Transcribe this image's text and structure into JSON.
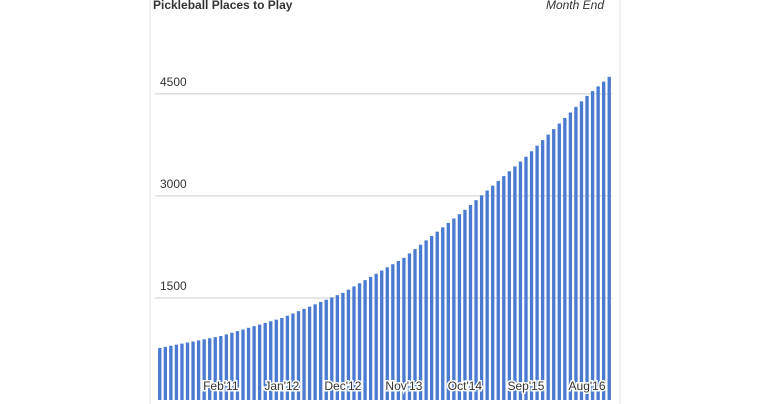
{
  "chart_data": {
    "type": "bar",
    "title": "Pickleball Places to Play",
    "subtitle": "Month End",
    "categories": [
      null,
      null,
      null,
      null,
      null,
      null,
      null,
      null,
      null,
      null,
      null,
      "Feb'11",
      null,
      null,
      null,
      null,
      null,
      null,
      null,
      null,
      null,
      null,
      "Jan'12",
      null,
      null,
      null,
      null,
      null,
      null,
      null,
      null,
      null,
      null,
      "Dec'12",
      null,
      null,
      null,
      null,
      null,
      null,
      null,
      null,
      null,
      null,
      "Nov'13",
      null,
      null,
      null,
      null,
      null,
      null,
      null,
      null,
      null,
      null,
      "Oct'14",
      null,
      null,
      null,
      null,
      null,
      null,
      null,
      null,
      null,
      null,
      "Sep'15",
      null,
      null,
      null,
      null,
      null,
      null,
      null,
      null,
      null,
      null,
      "Aug'16",
      null,
      null,
      null,
      null
    ],
    "values": [
      765,
      781,
      797,
      813,
      829,
      845,
      860,
      876,
      892,
      908,
      924,
      940,
      964,
      988,
      1012,
      1036,
      1061,
      1085,
      1109,
      1133,
      1157,
      1181,
      1205,
      1239,
      1272,
      1306,
      1340,
      1373,
      1407,
      1440,
      1474,
      1508,
      1541,
      1575,
      1622,
      1669,
      1715,
      1762,
      1809,
      1856,
      1903,
      1950,
      1996,
      2043,
      2090,
      2154,
      2218,
      2282,
      2346,
      2410,
      2474,
      2538,
      2603,
      2667,
      2731,
      2795,
      2866,
      2937,
      3008,
      3079,
      3150,
      3220,
      3291,
      3362,
      3433,
      3504,
      3575,
      3656,
      3738,
      3819,
      3901,
      3982,
      4063,
      4145,
      4226,
      4308,
      4389,
      4470,
      4540,
      4610,
      4680,
      4750
    ],
    "color": "#4a7bd0",
    "ylim": [
      0,
      5600
    ],
    "yticks": [
      1500,
      3000,
      4500
    ],
    "grid": true
  }
}
